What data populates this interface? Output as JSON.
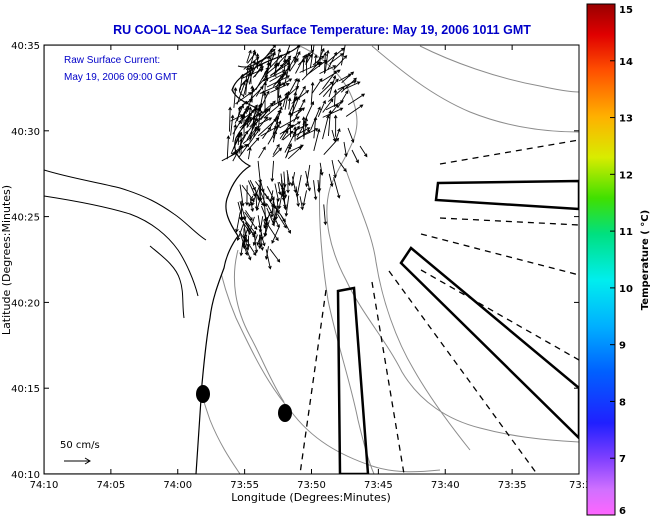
{
  "title": "RU COOL  NOAA–12  Sea Surface Temperature:  May 19, 2006 1011 GMT",
  "annotations": {
    "current_label": "Raw Surface Current:",
    "current_time": "May 19, 2006 09:00 GMT",
    "scale_label": "50 cm/s"
  },
  "colors": {
    "title": "#0000c8",
    "land": "#ffffff",
    "coastline": "#000000",
    "bathymetry": "#8c8c8c",
    "vectors": "#000000"
  },
  "chart_data": {
    "type": "map",
    "xlabel": "Longitude (Degrees:Minutes)",
    "ylabel": "Latitude (Degrees:Minutes)",
    "x_ticks": [
      "74:10",
      "74:05",
      "74:00",
      "73:55",
      "73:50",
      "73:45",
      "73:40",
      "73:35",
      "73:3"
    ],
    "y_ticks": [
      "40:35",
      "40:30",
      "40:25",
      "40:20",
      "40:15",
      "40:10"
    ],
    "xlim_deg": [
      -74.1667,
      -73.5
    ],
    "ylim_deg": [
      40.1667,
      40.5833
    ],
    "grid": false,
    "colorbar": {
      "label": "Temperature ( °C)",
      "ticks": [
        "15",
        "14",
        "13",
        "12",
        "11",
        "10",
        "9",
        "8",
        "7",
        "6"
      ],
      "range": [
        6,
        15
      ],
      "colormap": "jet-like (magenta-blue-cyan-green-yellow-red)"
    },
    "features": [
      {
        "type": "dot",
        "lon": -73.98,
        "lat": 40.243
      },
      {
        "type": "dot",
        "lon": -73.9433,
        "lat": 40.2283
      },
      {
        "type": "wedge-zone",
        "lon": [
          -73.675,
          -73.5
        ],
        "lat": [
          40.442,
          40.463
        ]
      },
      {
        "type": "wedge-zone",
        "lon": [
          -73.718,
          -73.5
        ],
        "lat": [
          40.269,
          40.383
        ]
      },
      {
        "type": "channel",
        "lon": [
          -73.876,
          -73.853
        ],
        "lat": [
          40.167,
          40.35
        ]
      }
    ]
  }
}
